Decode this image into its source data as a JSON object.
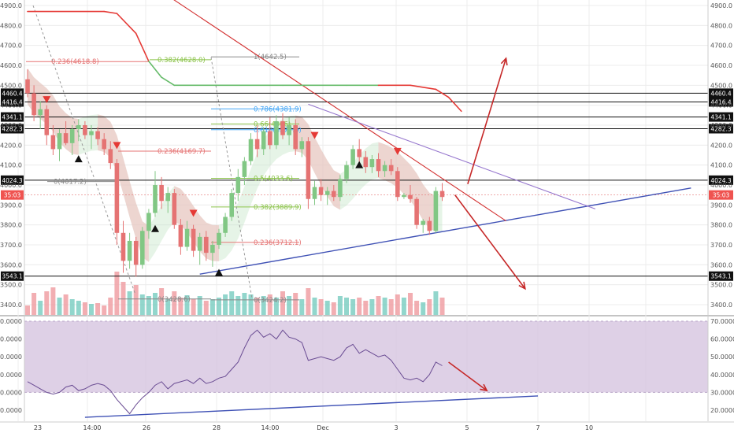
{
  "chart_data": [
    {
      "type": "candlestick",
      "title": "",
      "ylim": [
        3350,
        4950
      ],
      "y_ticks": [
        3400,
        3500,
        3600,
        3700,
        3800,
        3900,
        4000,
        4100,
        4200,
        4300,
        4400,
        4500,
        4600,
        4700,
        4800,
        4900
      ],
      "x_labels": [
        "23",
        "14:00",
        "26",
        "28",
        "14:00",
        "Dec",
        "3",
        "5",
        "7",
        "10"
      ],
      "price_label": "35:03",
      "price_label_value": 3950,
      "horizontal_levels": [
        {
          "label": "4460.4",
          "value": 4460.4
        },
        {
          "label": "4416.4",
          "value": 4416.4
        },
        {
          "label": "4341.1",
          "value": 4341.1
        },
        {
          "label": "4282.3",
          "value": 4282.3
        },
        {
          "label": "4024.3",
          "value": 4024.3
        },
        {
          "label": "3543.1",
          "value": 3543.1
        }
      ],
      "fib_labels": [
        {
          "text": "0.236(4618.8)",
          "value": 4618.8,
          "color": "#e57373"
        },
        {
          "text": "0.382(4628.0)",
          "value": 4628.0,
          "color": "#8bc34a"
        },
        {
          "text": "1(4642.5)",
          "value": 4642.5,
          "color": "#888888"
        },
        {
          "text": "0.786(4381.9)",
          "value": 4381.9,
          "color": "#42a5f5"
        },
        {
          "text": "0.618(4277.3)",
          "value": 4277.3,
          "color": "#42a5f5"
        },
        {
          "text": "0.66(4306)",
          "value": 4306,
          "color": "#8bc34a"
        },
        {
          "text": "0.236(4169.7)",
          "value": 4169.7,
          "color": "#e57373"
        },
        {
          "text": "0(4017.2)",
          "value": 4017.2,
          "color": "#888888"
        },
        {
          "text": "0.5(4033.6)",
          "value": 4033.6,
          "color": "#8bc34a"
        },
        {
          "text": "0.382(3889.9)",
          "value": 3889.9,
          "color": "#8bc34a"
        },
        {
          "text": "0.236(3712.1)",
          "value": 3712.1,
          "color": "#e57373"
        },
        {
          "text": "0(3428.6)",
          "value": 3428.6,
          "color": "#888888"
        },
        {
          "text": "0(3424.2)",
          "value": 3424.2,
          "color": "#888888"
        }
      ],
      "candles": [
        {
          "o": 4530,
          "h": 4580,
          "l": 4440,
          "c": 4460
        },
        {
          "o": 4460,
          "h": 4500,
          "l": 4320,
          "c": 4350
        },
        {
          "o": 4350,
          "h": 4420,
          "l": 4280,
          "c": 4380
        },
        {
          "o": 4380,
          "h": 4400,
          "l": 4200,
          "c": 4250
        },
        {
          "o": 4250,
          "h": 4300,
          "l": 4150,
          "c": 4180
        },
        {
          "o": 4180,
          "h": 4280,
          "l": 4120,
          "c": 4260
        },
        {
          "o": 4260,
          "h": 4320,
          "l": 4200,
          "c": 4210
        },
        {
          "o": 4210,
          "h": 4300,
          "l": 4150,
          "c": 4280
        },
        {
          "o": 4280,
          "h": 4330,
          "l": 4220,
          "c": 4300
        },
        {
          "o": 4300,
          "h": 4320,
          "l": 4230,
          "c": 4250
        },
        {
          "o": 4250,
          "h": 4300,
          "l": 4180,
          "c": 4270
        },
        {
          "o": 4270,
          "h": 4290,
          "l": 4200,
          "c": 4230
        },
        {
          "o": 4230,
          "h": 4260,
          "l": 4150,
          "c": 4180
        },
        {
          "o": 4180,
          "h": 4220,
          "l": 4080,
          "c": 4110
        },
        {
          "o": 4110,
          "h": 4130,
          "l": 3700,
          "c": 3760
        },
        {
          "o": 3760,
          "h": 3820,
          "l": 3560,
          "c": 3620
        },
        {
          "o": 3620,
          "h": 3760,
          "l": 3580,
          "c": 3720
        },
        {
          "o": 3720,
          "h": 3740,
          "l": 3540,
          "c": 3600
        },
        {
          "o": 3600,
          "h": 3790,
          "l": 3580,
          "c": 3770
        },
        {
          "o": 3770,
          "h": 3880,
          "l": 3730,
          "c": 3860
        },
        {
          "o": 3860,
          "h": 4070,
          "l": 3840,
          "c": 4000
        },
        {
          "o": 4000,
          "h": 4040,
          "l": 3880,
          "c": 3920
        },
        {
          "o": 3920,
          "h": 3990,
          "l": 3860,
          "c": 3960
        },
        {
          "o": 3960,
          "h": 3980,
          "l": 3780,
          "c": 3800
        },
        {
          "o": 3800,
          "h": 3830,
          "l": 3650,
          "c": 3690
        },
        {
          "o": 3690,
          "h": 3820,
          "l": 3670,
          "c": 3780
        },
        {
          "o": 3780,
          "h": 3800,
          "l": 3640,
          "c": 3670
        },
        {
          "o": 3670,
          "h": 3760,
          "l": 3600,
          "c": 3740
        },
        {
          "o": 3740,
          "h": 3770,
          "l": 3620,
          "c": 3660
        },
        {
          "o": 3660,
          "h": 3720,
          "l": 3590,
          "c": 3700
        },
        {
          "o": 3700,
          "h": 3780,
          "l": 3680,
          "c": 3760
        },
        {
          "o": 3760,
          "h": 3860,
          "l": 3740,
          "c": 3840
        },
        {
          "o": 3840,
          "h": 3980,
          "l": 3820,
          "c": 3960
        },
        {
          "o": 3960,
          "h": 4080,
          "l": 3920,
          "c": 4040
        },
        {
          "o": 4040,
          "h": 4140,
          "l": 4000,
          "c": 4120
        },
        {
          "o": 4120,
          "h": 4260,
          "l": 4100,
          "c": 4230
        },
        {
          "o": 4230,
          "h": 4300,
          "l": 4140,
          "c": 4180
        },
        {
          "o": 4180,
          "h": 4290,
          "l": 4150,
          "c": 4270
        },
        {
          "o": 4270,
          "h": 4340,
          "l": 4180,
          "c": 4200
        },
        {
          "o": 4200,
          "h": 4350,
          "l": 4180,
          "c": 4320
        },
        {
          "o": 4320,
          "h": 4360,
          "l": 4230,
          "c": 4250
        },
        {
          "o": 4250,
          "h": 4340,
          "l": 4200,
          "c": 4300
        },
        {
          "o": 4300,
          "h": 4330,
          "l": 4150,
          "c": 4180
        },
        {
          "o": 4180,
          "h": 4240,
          "l": 4140,
          "c": 4220
        },
        {
          "o": 4220,
          "h": 4240,
          "l": 3880,
          "c": 3930
        },
        {
          "o": 3930,
          "h": 4020,
          "l": 3900,
          "c": 3990
        },
        {
          "o": 3990,
          "h": 4030,
          "l": 3920,
          "c": 3950
        },
        {
          "o": 3950,
          "h": 3990,
          "l": 3900,
          "c": 3970
        },
        {
          "o": 3970,
          "h": 4000,
          "l": 3920,
          "c": 3940
        },
        {
          "o": 3940,
          "h": 4050,
          "l": 3920,
          "c": 4030
        },
        {
          "o": 4030,
          "h": 4120,
          "l": 4010,
          "c": 4100
        },
        {
          "o": 4100,
          "h": 4200,
          "l": 4080,
          "c": 4180
        },
        {
          "o": 4180,
          "h": 4230,
          "l": 4110,
          "c": 4140
        },
        {
          "o": 4140,
          "h": 4170,
          "l": 4060,
          "c": 4090
        },
        {
          "o": 4090,
          "h": 4150,
          "l": 4060,
          "c": 4130
        },
        {
          "o": 4130,
          "h": 4160,
          "l": 4040,
          "c": 4070
        },
        {
          "o": 4070,
          "h": 4120,
          "l": 4040,
          "c": 4100
        },
        {
          "o": 4100,
          "h": 4130,
          "l": 4050,
          "c": 4070
        },
        {
          "o": 4070,
          "h": 4090,
          "l": 3920,
          "c": 3940
        },
        {
          "o": 3940,
          "h": 3960,
          "l": 3930,
          "c": 3950
        },
        {
          "o": 3950,
          "h": 4000,
          "l": 3910,
          "c": 3930
        },
        {
          "o": 3930,
          "h": 3940,
          "l": 3780,
          "c": 3800
        },
        {
          "o": 3800,
          "h": 3830,
          "l": 3760,
          "c": 3820
        },
        {
          "o": 3820,
          "h": 3840,
          "l": 3750,
          "c": 3770
        },
        {
          "o": 3770,
          "h": 3990,
          "l": 3760,
          "c": 3970
        },
        {
          "o": 3970,
          "h": 4010,
          "l": 3920,
          "c": 3940
        }
      ],
      "volume": [
        12,
        28,
        18,
        30,
        35,
        22,
        26,
        20,
        18,
        16,
        14,
        15,
        12,
        22,
        55,
        42,
        30,
        38,
        26,
        24,
        28,
        34,
        20,
        30,
        22,
        25,
        20,
        24,
        18,
        20,
        22,
        26,
        30,
        24,
        28,
        26,
        22,
        24,
        26,
        22,
        30,
        24,
        28,
        20,
        34,
        22,
        20,
        18,
        16,
        24,
        22,
        20,
        22,
        18,
        20,
        24,
        22,
        20,
        26,
        22,
        28,
        18,
        16,
        20,
        30,
        22
      ],
      "support_line": {
        "from": {
          "i": 27,
          "v": 3553
        },
        "to": {
          "i": 104,
          "v": 3985
        }
      },
      "resistance_line": {
        "from": {
          "i": 21,
          "v": 4970
        },
        "to": {
          "i": 75,
          "v": 3820
        }
      },
      "purple_line": {
        "from": {
          "i": 44,
          "v": 4405
        },
        "to": {
          "i": 89,
          "v": 3880
        }
      },
      "ma_line": [
        [
          0,
          4870
        ],
        [
          12,
          4870
        ],
        [
          14,
          4860
        ],
        [
          17,
          4760
        ],
        [
          19,
          4620
        ],
        [
          21,
          4540
        ],
        [
          23,
          4500
        ],
        [
          30,
          4500
        ],
        [
          40,
          4500
        ],
        [
          50,
          4500
        ],
        [
          55,
          4500
        ],
        [
          60,
          4500
        ],
        [
          64,
          4480
        ],
        [
          66,
          4440
        ],
        [
          68,
          4370
        ]
      ],
      "projection_up": {
        "from": {
          "i": 69,
          "v": 4005
        },
        "to": {
          "i": 75,
          "v": 4635
        }
      },
      "projection_down": {
        "from": {
          "i": 67,
          "v": 3950
        },
        "to": {
          "i": 78,
          "v": 3480
        }
      }
    },
    {
      "type": "line",
      "title": "",
      "ylim": [
        15,
        72
      ],
      "y_ticks": [
        20,
        30,
        40,
        50,
        60,
        70
      ],
      "y_tick_labels": [
        "20.0000",
        "30.0000",
        "40.0000",
        "50.0000",
        "60.0000",
        "70.0000"
      ],
      "band": [
        30,
        70
      ],
      "series": [
        {
          "values": [
            36,
            34,
            32,
            30,
            29,
            30,
            33,
            34,
            31,
            32,
            34,
            35,
            34,
            31,
            26,
            22,
            18,
            23,
            27,
            30,
            34,
            36,
            32,
            35,
            36,
            37,
            35,
            38,
            35,
            36,
            38,
            39,
            43,
            47,
            55,
            62,
            65,
            61,
            63,
            60,
            65,
            61,
            60,
            58,
            48,
            49,
            50,
            49,
            48,
            50,
            55,
            57,
            52,
            54,
            52,
            50,
            51,
            48,
            43,
            38,
            37,
            38,
            36,
            40,
            47,
            45
          ]
        }
      ],
      "trend_line": {
        "from": {
          "i": 9,
          "v": 16
        },
        "to": {
          "i": 80,
          "v": 28
        }
      },
      "arrow": {
        "from": {
          "i": 66,
          "v": 47
        },
        "to": {
          "i": 72,
          "v": 31
        }
      }
    }
  ]
}
